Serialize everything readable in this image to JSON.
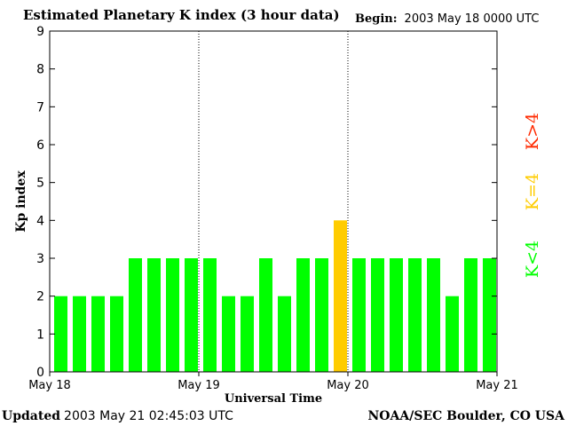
{
  "header": {
    "title": "Estimated Planetary K index (3 hour data)",
    "begin_label": "Begin:",
    "begin_value": "2003 May 18 0000 UTC"
  },
  "footer": {
    "updated_label": "Updated",
    "updated_value": "2003 May 21 02:45:03 UTC",
    "credit": "NOAA/SEC Boulder, CO USA"
  },
  "legend": {
    "high": "K>4",
    "mid": "K=4",
    "low": "K<4"
  },
  "colors": {
    "low": "#00ff00",
    "mid": "#ffcc00",
    "high": "#ff2a00"
  },
  "chart_data": {
    "type": "bar",
    "xlabel": "Universal Time",
    "ylabel": "Kp index",
    "ylim": [
      0,
      9
    ],
    "yticks": [
      0,
      1,
      2,
      3,
      4,
      5,
      6,
      7,
      8,
      9
    ],
    "x_tick_labels": [
      "May 18",
      "May 19",
      "May 20",
      "May 21"
    ],
    "day_separators_after_interval": [
      8,
      16
    ],
    "grid": false,
    "values": [
      2,
      2,
      2,
      2,
      3,
      3,
      3,
      3,
      3,
      2,
      2,
      3,
      2,
      3,
      3,
      4,
      3,
      3,
      3,
      3,
      3,
      2,
      3,
      3
    ]
  }
}
